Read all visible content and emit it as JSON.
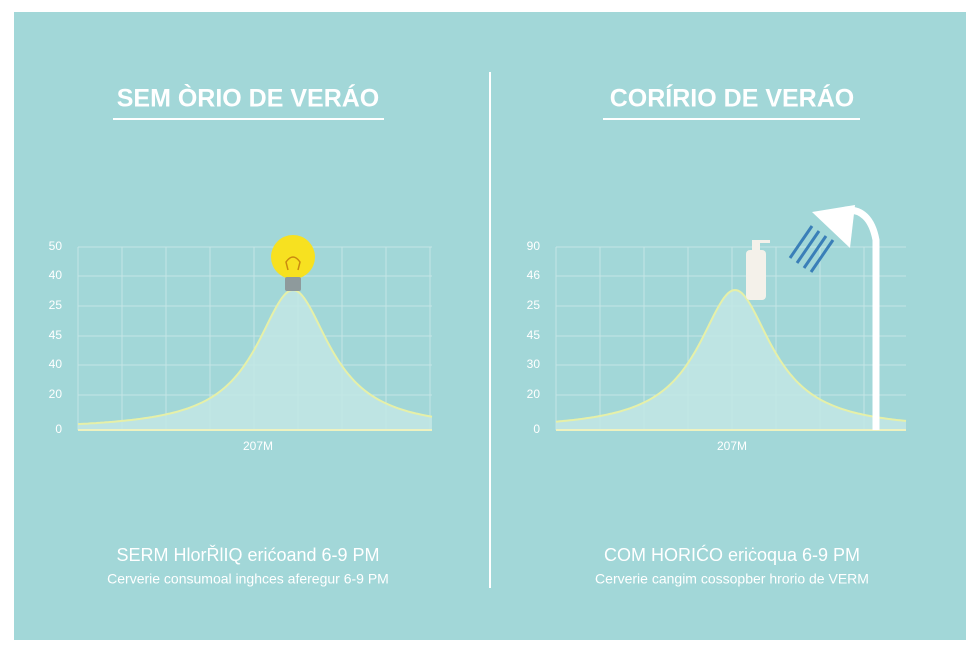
{
  "panels": [
    {
      "title": "SEM ÒRIO DE VERÁO",
      "y_labels": [
        "50",
        "40",
        "25",
        "45",
        "40",
        "20",
        "0"
      ],
      "x_label": "207M",
      "caption": "SERM HlorŘlIQ erićoand 6-9 PM",
      "subcaption": "Cerverie consumoal inghces aferegur 6-9 PM"
    },
    {
      "title": "CORÍRIO DE VERÁO",
      "y_labels": [
        "90",
        "46",
        "25",
        "45",
        "30",
        "20",
        "0"
      ],
      "x_label": "207M",
      "caption": "COM HORIĆO eriċoqua 6-9 PM",
      "subcaption": "Cerverie cangim cossopber hrorio de VERM"
    }
  ]
}
